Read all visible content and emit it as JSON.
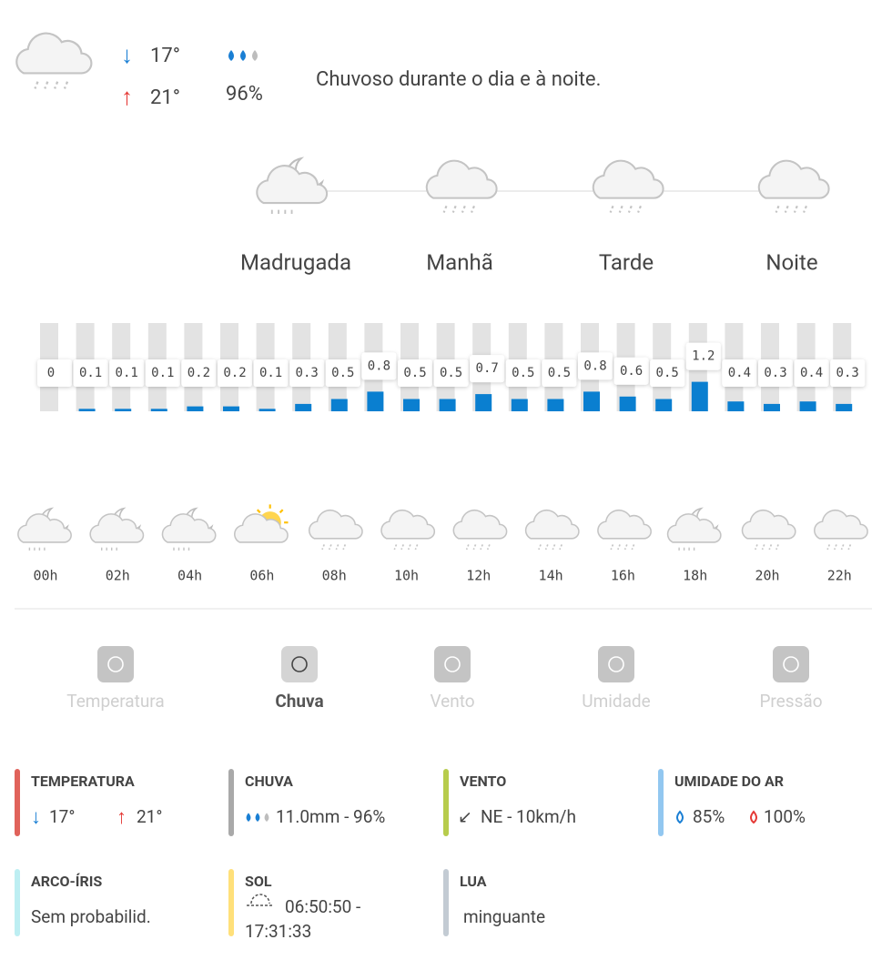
{
  "header": {
    "min_temp": "17°",
    "max_temp": "21°",
    "humidity": "96%",
    "description": "Chuvoso durante o dia e à noite."
  },
  "periods": [
    "Madrugada",
    "Manhã",
    "Tarde",
    "Noite"
  ],
  "rain_chart": {
    "type": "bar",
    "color": "#0a7fd0",
    "values": [
      0,
      0.1,
      0.1,
      0.1,
      0.2,
      0.2,
      0.1,
      0.3,
      0.5,
      0.8,
      0.5,
      0.5,
      0.7,
      0.5,
      0.5,
      0.8,
      0.6,
      0.5,
      1.2,
      0.4,
      0.3,
      0.4,
      0.3
    ]
  },
  "hours": [
    "00h",
    "02h",
    "04h",
    "06h",
    "08h",
    "10h",
    "12h",
    "14h",
    "16h",
    "18h",
    "20h",
    "22h"
  ],
  "tabs": [
    {
      "label": "Temperatura"
    },
    {
      "label": "Chuva",
      "active": true
    },
    {
      "label": "Vento"
    },
    {
      "label": "Umidade"
    },
    {
      "label": "Pressão"
    }
  ],
  "details": [
    {
      "title": "TEMPERATURA",
      "color": "#e0625a",
      "min": "17°",
      "max": "21°"
    },
    {
      "title": "CHUVA",
      "color": "#a9a9a9",
      "value": "11.0mm - 96%"
    },
    {
      "title": "VENTO",
      "color": "#b7cc4c",
      "value": "NE - 10km/h"
    },
    {
      "title": "UMIDADE DO AR",
      "color": "#92c7f0",
      "min": "85%",
      "max": "100%"
    },
    {
      "title": "ARCO-ÍRIS",
      "color": "#bdeef2",
      "value": "Sem probabilid."
    },
    {
      "title": "SOL",
      "color": "#ffe07a",
      "lines": [
        "06:50:50 -",
        "17:31:33"
      ]
    },
    {
      "title": "LUA",
      "color": "#c3cbd3",
      "value": "minguante"
    }
  ]
}
